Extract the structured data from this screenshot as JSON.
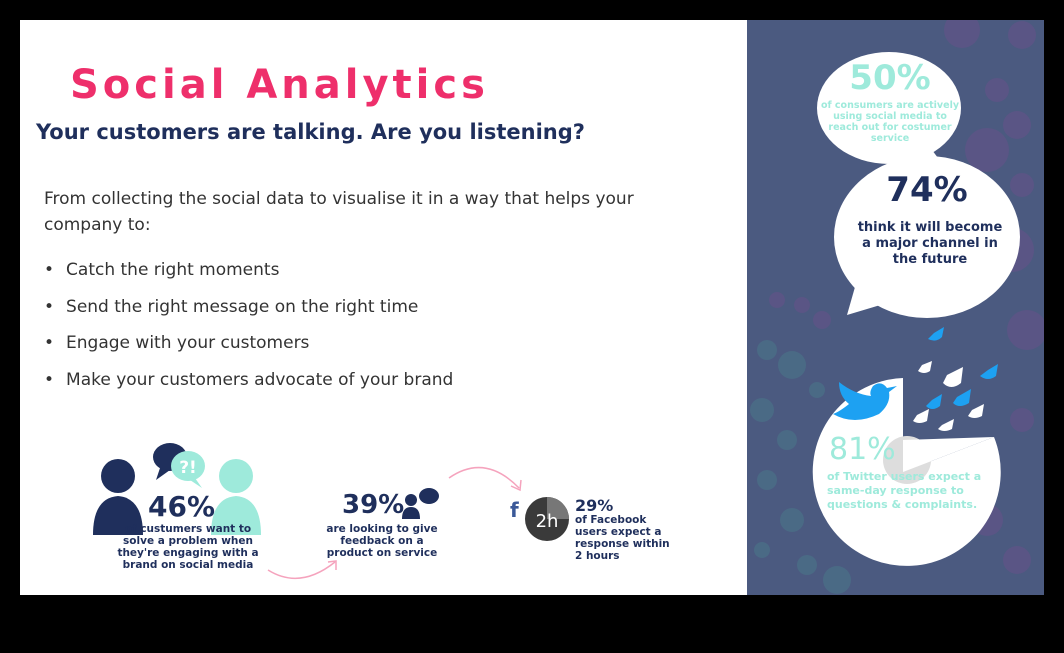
{
  "header": {
    "title": "Social Analytics",
    "subtitle": "Your customers are talking. Are you listening?"
  },
  "intro": "From collecting the social data to visualise it in a way that helps your company to:",
  "bullets": [
    "Catch the right moments",
    "Send the right message on the right time",
    "Engage with your customers",
    "Make your customers advocate of your brand"
  ],
  "stats": {
    "s46": {
      "value": "46%",
      "text": "of custumers want to solve a problem when they're engaging with a brand on social media",
      "bubble": "?!"
    },
    "s39": {
      "value": "39%",
      "text": "are looking to give feedback on a product on service"
    },
    "s29": {
      "value": "29%",
      "text": "of Facebook users expect a response within 2 hours",
      "clock": "2h",
      "brand": "f"
    },
    "s50": {
      "value": "50%",
      "text": "of consumers are actively using social media to reach out for costumer service"
    },
    "s74": {
      "value": "74%",
      "text": "think it will become a major channel in the future"
    },
    "s81": {
      "value": "81%",
      "text": "of Twitter users expect a same-day response to questions & complaints."
    }
  },
  "colors": {
    "accent": "#ee2f6b",
    "navy": "#1f2f5c",
    "mint": "#9eeadb",
    "panel": "#4b5a80",
    "twitter": "#1da1f2"
  }
}
